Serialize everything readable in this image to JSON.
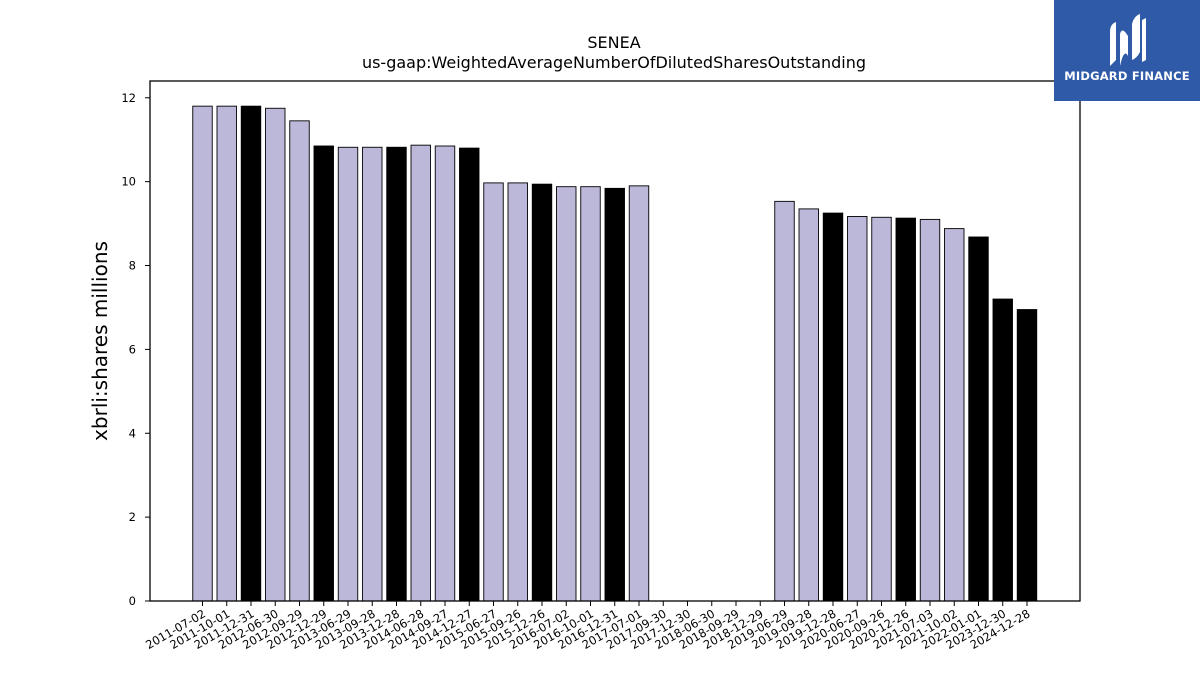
{
  "chart_data": {
    "type": "bar",
    "title": "SENEA",
    "subtitle": "us-gaap:WeightedAverageNumberOfDilutedSharesOutstanding",
    "ylabel": "xbrli:shares millions",
    "xlabel": "",
    "ylim": [
      0,
      12.4
    ],
    "yticks": [
      0,
      2,
      4,
      6,
      8,
      10,
      12
    ],
    "grid": false,
    "categories": [
      "2011-07-02",
      "2011-10-01",
      "2011-12-31",
      "2012-06-30",
      "2012-09-29",
      "2012-12-29",
      "2013-06-29",
      "2013-09-28",
      "2013-12-28",
      "2014-06-28",
      "2014-09-27",
      "2014-12-27",
      "2015-06-27",
      "2015-09-26",
      "2015-12-26",
      "2016-07-02",
      "2016-10-01",
      "2016-12-31",
      "2017-07-01",
      "2017-09-30",
      "2017-12-30",
      "2018-06-30",
      "2018-09-29",
      "2018-12-29",
      "2019-06-29",
      "2019-09-28",
      "2019-12-28",
      "2020-06-27",
      "2020-09-26",
      "2020-12-26",
      "2021-07-03",
      "2021-10-02",
      "2022-01-01",
      "2023-12-30",
      "2024-12-28"
    ],
    "values": [
      11.8,
      11.8,
      11.8,
      11.75,
      11.45,
      10.85,
      10.82,
      10.82,
      10.82,
      10.87,
      10.85,
      10.8,
      9.97,
      9.97,
      9.94,
      9.88,
      9.88,
      9.84,
      9.9,
      0,
      0,
      0,
      0,
      0,
      9.53,
      9.35,
      9.25,
      9.17,
      9.15,
      9.13,
      9.1,
      8.88,
      8.68,
      7.2,
      6.95
    ],
    "bar_colors": [
      "#bcb8d9",
      "#bcb8d9",
      "#000000",
      "#bcb8d9",
      "#bcb8d9",
      "#000000",
      "#bcb8d9",
      "#bcb8d9",
      "#000000",
      "#bcb8d9",
      "#bcb8d9",
      "#000000",
      "#bcb8d9",
      "#bcb8d9",
      "#000000",
      "#bcb8d9",
      "#bcb8d9",
      "#000000",
      "#bcb8d9",
      "#bcb8d9",
      "#bcb8d9",
      "#bcb8d9",
      "#bcb8d9",
      "#bcb8d9",
      "#bcb8d9",
      "#bcb8d9",
      "#000000",
      "#bcb8d9",
      "#bcb8d9",
      "#000000",
      "#bcb8d9",
      "#bcb8d9",
      "#000000",
      "#000000",
      "#000000"
    ]
  },
  "logo": {
    "text": "MIDGARD FINANCE",
    "background": "#2f5aa8",
    "icon": "midgard-m-logo-icon"
  }
}
